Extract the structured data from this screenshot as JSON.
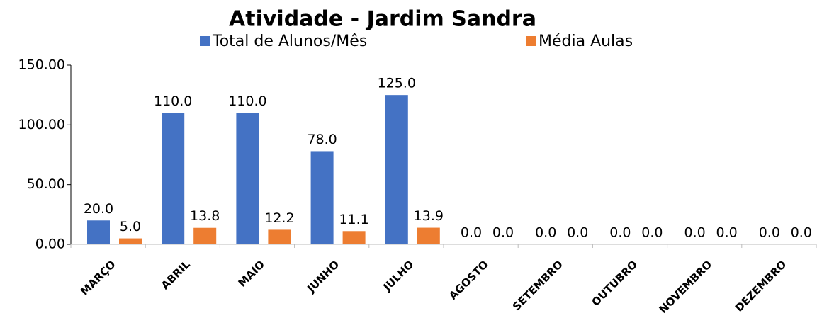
{
  "chart_data": {
    "type": "bar",
    "title": "Atividade - Jardim Sandra",
    "categories": [
      "MARÇO",
      "ABRIL",
      "MAIO",
      "JUNHO",
      "JULHO",
      "AGOSTO",
      "SETEMBRO",
      "OUTUBRO",
      "NOVEMBRO",
      "DEZEMBRO"
    ],
    "series": [
      {
        "name": "Total de Alunos/Mês",
        "color": "#4472c4",
        "values": [
          20,
          110,
          110,
          78,
          125,
          0,
          0,
          0,
          0,
          0
        ],
        "value_labels": [
          "20.0",
          "110.0",
          "110.0",
          "78.0",
          "125.0",
          "0.0",
          "0.0",
          "0.0",
          "0.0",
          "0.0"
        ]
      },
      {
        "name": "Média Aulas",
        "color": "#ed7d31",
        "values": [
          5,
          13.8,
          12.2,
          11.1,
          13.9,
          0,
          0,
          0,
          0,
          0
        ],
        "value_labels": [
          "5.0",
          "13.8",
          "12.2",
          "11.1",
          "13.9",
          "0.0",
          "0.0",
          "0.0",
          "0.0",
          "0.0"
        ]
      }
    ],
    "ylim": [
      0,
      150
    ],
    "yticks": [
      {
        "value": 0,
        "label": "0.00"
      },
      {
        "value": 50,
        "label": "50.00"
      },
      {
        "value": 100,
        "label": "100.00"
      },
      {
        "value": 150,
        "label": "150.00"
      }
    ],
    "grid": false,
    "legend": "top"
  }
}
